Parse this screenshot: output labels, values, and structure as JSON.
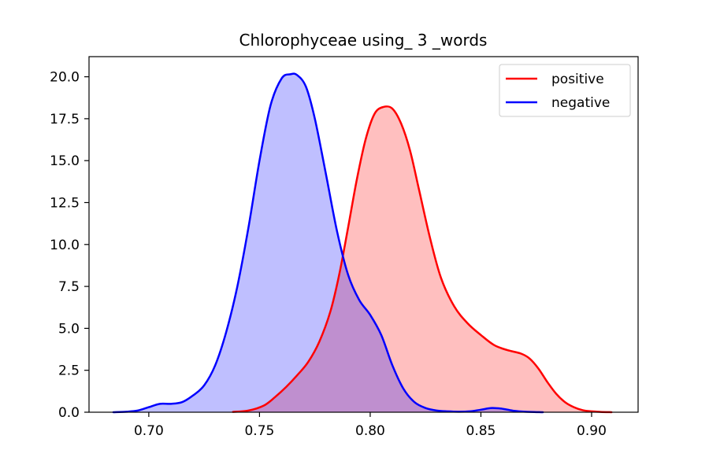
{
  "chart_data": {
    "type": "area",
    "title": "Chlorophyceae using_ 3 _words",
    "xlabel": "",
    "ylabel": "",
    "xlim": [
      0.673,
      0.921
    ],
    "ylim": [
      0,
      21.2
    ],
    "x_ticks": [
      0.7,
      0.75,
      0.8,
      0.85,
      0.9
    ],
    "x_tick_labels": [
      "0.70",
      "0.75",
      "0.80",
      "0.85",
      "0.90"
    ],
    "y_ticks": [
      0,
      2.5,
      5,
      7.5,
      10,
      12.5,
      15,
      17.5,
      20
    ],
    "y_tick_labels": [
      "0.0",
      "2.5",
      "5.0",
      "7.5",
      "10.0",
      "12.5",
      "15.0",
      "17.5",
      "20.0"
    ],
    "grid": false,
    "legend_position": "top-right",
    "series": [
      {
        "name": "positive",
        "color": "#ff0000",
        "fill": "#ff0000",
        "fill_opacity": 0.25,
        "x": [
          0.738,
          0.745,
          0.752,
          0.757,
          0.762,
          0.767,
          0.772,
          0.777,
          0.782,
          0.786,
          0.79,
          0.794,
          0.798,
          0.802,
          0.806,
          0.81,
          0.814,
          0.818,
          0.822,
          0.827,
          0.832,
          0.838,
          0.844,
          0.85,
          0.856,
          0.862,
          0.868,
          0.872,
          0.876,
          0.88,
          0.884,
          0.888,
          0.892,
          0.896,
          0.9,
          0.904,
          0.909
        ],
        "y": [
          0.02,
          0.1,
          0.4,
          0.9,
          1.5,
          2.2,
          3.0,
          4.2,
          6.0,
          8.2,
          11.0,
          13.9,
          16.3,
          17.8,
          18.2,
          18.1,
          17.2,
          15.6,
          13.3,
          10.4,
          8.0,
          6.3,
          5.3,
          4.6,
          4.0,
          3.7,
          3.5,
          3.2,
          2.6,
          1.8,
          1.1,
          0.6,
          0.3,
          0.12,
          0.05,
          0.02,
          0.0
        ]
      },
      {
        "name": "negative",
        "color": "#0000ff",
        "fill": "#0000ff",
        "fill_opacity": 0.25,
        "x": [
          0.684,
          0.69,
          0.695,
          0.7,
          0.705,
          0.71,
          0.715,
          0.72,
          0.725,
          0.73,
          0.735,
          0.74,
          0.745,
          0.75,
          0.755,
          0.76,
          0.764,
          0.767,
          0.771,
          0.775,
          0.78,
          0.785,
          0.79,
          0.795,
          0.8,
          0.805,
          0.81,
          0.815,
          0.82,
          0.825,
          0.83,
          0.835,
          0.84,
          0.845,
          0.85,
          0.855,
          0.86,
          0.865,
          0.87,
          0.878
        ],
        "y": [
          0.0,
          0.03,
          0.1,
          0.3,
          0.5,
          0.5,
          0.6,
          1.0,
          1.6,
          2.8,
          4.8,
          7.5,
          11.0,
          15.0,
          18.3,
          19.9,
          20.15,
          20.1,
          19.4,
          17.5,
          14.2,
          10.8,
          8.2,
          6.7,
          5.8,
          4.6,
          2.8,
          1.4,
          0.6,
          0.25,
          0.1,
          0.05,
          0.03,
          0.05,
          0.15,
          0.25,
          0.2,
          0.08,
          0.03,
          0.0
        ]
      }
    ]
  }
}
